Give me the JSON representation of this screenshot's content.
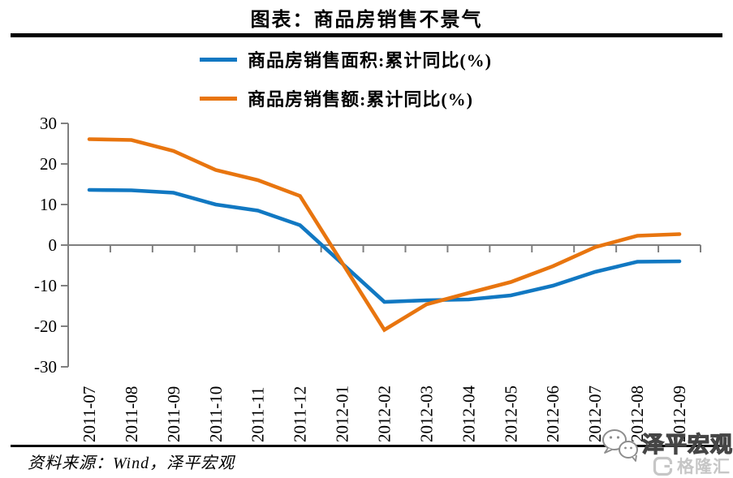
{
  "header": {
    "title": "图表：商品房销售不景气"
  },
  "footer": {
    "source": "资料来源：Wind，泽平宏观",
    "watermark_brand": "泽平宏观",
    "watermark_platform": "格隆汇"
  },
  "chart_data": {
    "type": "line",
    "title": "图表：商品房销售不景气",
    "categories": [
      "2011-07",
      "2011-08",
      "2011-09",
      "2011-10",
      "2011-11",
      "2011-12",
      "2012-01",
      "2012-02",
      "2012-03",
      "2012-04",
      "2012-05",
      "2012-06",
      "2012-07",
      "2012-08",
      "2012-09"
    ],
    "series": [
      {
        "name": "商品房销售面积:累计同比(%)",
        "color": "#1178c2",
        "values": [
          13.6,
          13.5,
          12.9,
          10.0,
          8.5,
          4.9,
          null,
          -14.0,
          -13.6,
          -13.4,
          -12.4,
          -10.0,
          -6.6,
          -4.1,
          -4.0
        ]
      },
      {
        "name": "商品房销售额:累计同比(%)",
        "color": "#e8750f",
        "values": [
          26.1,
          25.9,
          23.2,
          18.5,
          16.0,
          12.1,
          null,
          -20.9,
          -14.6,
          -11.8,
          -9.1,
          -5.2,
          -0.5,
          2.3,
          2.7
        ]
      }
    ],
    "xlabel": "",
    "ylabel": "",
    "ylim": [
      -30,
      30
    ],
    "yticks": [
      30,
      20,
      10,
      0,
      -10,
      -20,
      -30
    ],
    "grid": "zero-baseline-only",
    "legend_position": "top-left",
    "axis_color": "#7f7f7f"
  }
}
